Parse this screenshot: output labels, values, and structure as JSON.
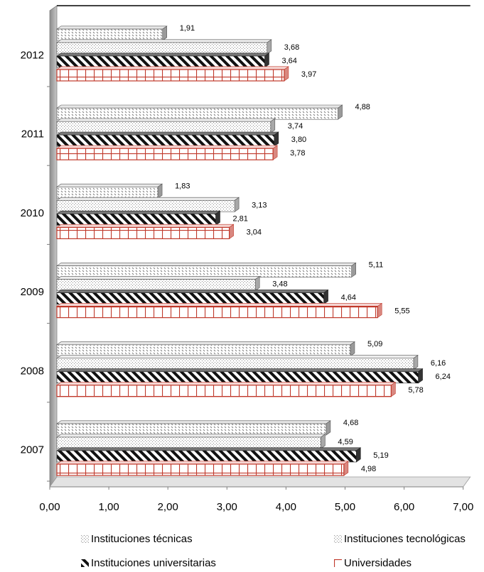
{
  "chart_data": {
    "type": "bar",
    "orientation": "horizontal",
    "categories": [
      "2007",
      "2008",
      "2009",
      "2010",
      "2011",
      "2012"
    ],
    "series": [
      {
        "name": "Instituciones  técnicas",
        "values": [
          4.68,
          5.09,
          5.11,
          1.83,
          4.88,
          1.91
        ]
      },
      {
        "name": "Instituciones tecnológicas",
        "values": [
          4.59,
          6.16,
          3.48,
          3.13,
          3.74,
          3.68
        ]
      },
      {
        "name": "Instituciones universitarias",
        "values": [
          5.19,
          6.24,
          4.64,
          2.81,
          3.8,
          3.64
        ]
      },
      {
        "name": "Universidades",
        "values": [
          4.98,
          5.78,
          5.55,
          3.04,
          3.78,
          3.97
        ]
      }
    ],
    "value_labels": [
      [
        "4,68",
        "5,09",
        "5,11",
        "1,83",
        "4,88",
        "1,91"
      ],
      [
        "4,59",
        "6,16",
        "3,48",
        "3,13",
        "3,74",
        "3,68"
      ],
      [
        "5,19",
        "6,24",
        "4,64",
        "2,81",
        "3,80",
        "3,64"
      ],
      [
        "4,98",
        "5,78",
        "5,55",
        "3,04",
        "3,78",
        "3,97"
      ]
    ],
    "x_ticks": [
      "0,00",
      "1,00",
      "2,00",
      "3,00",
      "4,00",
      "5,00",
      "6,00",
      "7,00"
    ],
    "xlim": [
      0,
      7
    ],
    "grid": false,
    "three_d": true,
    "legend_position": "bottom",
    "colors": {
      "bar_stroke": "#555555",
      "univ_stroke": "#c0392b",
      "wall": "#a6a6a6"
    }
  },
  "legend": {
    "tecnicas": "Instituciones  técnicas",
    "tecnologicas": "Instituciones tecnológicas",
    "universitarias": "Instituciones universitarias",
    "universidades": "Universidades"
  }
}
